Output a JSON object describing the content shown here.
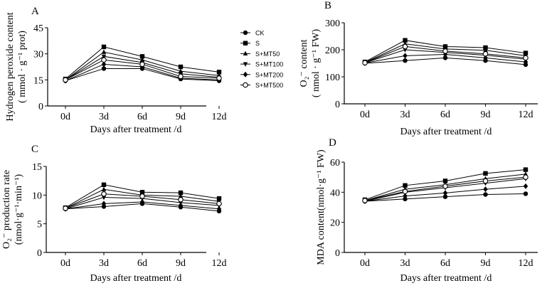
{
  "colors": {
    "ink": "#000000",
    "background": "#ffffff"
  },
  "legend": {
    "entries": [
      {
        "label": "CK",
        "marker": "circle"
      },
      {
        "label": "S",
        "marker": "square"
      },
      {
        "label": "S+MT50",
        "marker": "triangle-up"
      },
      {
        "label": "S+MT100",
        "marker": "triangle-down"
      },
      {
        "label": "S+MT200",
        "marker": "diamond"
      },
      {
        "label": "S+MT500",
        "marker": "circle-open"
      }
    ]
  },
  "chart_data": [
    {
      "type": "line",
      "panel_label": "A",
      "ylabel_lines": [
        "Hydrogen peroxide content",
        "( mmol · g⁻¹ prot)"
      ],
      "xlabel": "Days after treatment /d",
      "categories": [
        "0d",
        "3d",
        "6d",
        "9d",
        "12d"
      ],
      "ylim": [
        0,
        45
      ],
      "yticks": [
        0,
        15,
        30,
        45
      ],
      "ytick_labels": [
        "0",
        "15",
        "30",
        "45"
      ],
      "series": [
        {
          "name": "CK",
          "values": [
            14.5,
            21.5,
            21.5,
            15.5,
            14.5
          ]
        },
        {
          "name": "S",
          "values": [
            15.5,
            34.0,
            28.5,
            22.5,
            19.5
          ]
        },
        {
          "name": "S+MT50",
          "values": [
            15.0,
            31.0,
            26.5,
            20.0,
            17.5
          ]
        },
        {
          "name": "S+MT100",
          "values": [
            15.0,
            28.5,
            25.0,
            18.5,
            16.5
          ]
        },
        {
          "name": "S+MT200",
          "values": [
            14.5,
            24.0,
            22.5,
            16.0,
            15.0
          ]
        },
        {
          "name": "S+MT500",
          "values": [
            15.0,
            26.5,
            24.0,
            17.0,
            16.0
          ]
        }
      ]
    },
    {
      "type": "line",
      "panel_label": "B",
      "ylabel_lines": [
        "O₂⁻ content",
        "( nmol · g⁻¹ FW)"
      ],
      "xlabel": "Days after treatment /d",
      "categories": [
        "0d",
        "3d",
        "6d",
        "9d",
        "12d"
      ],
      "ylim": [
        0,
        300
      ],
      "yticks": [
        0,
        100,
        200,
        300
      ],
      "ytick_labels": [
        "0",
        "100",
        "200",
        "300"
      ],
      "series": [
        {
          "name": "CK",
          "values": [
            150,
            160,
            170,
            160,
            145
          ]
        },
        {
          "name": "S",
          "values": [
            155,
            235,
            212,
            208,
            188
          ]
        },
        {
          "name": "S+MT50",
          "values": [
            153,
            222,
            203,
            198,
            178
          ]
        },
        {
          "name": "S+MT100",
          "values": [
            152,
            200,
            190,
            180,
            165
          ]
        },
        {
          "name": "S+MT200",
          "values": [
            151,
            178,
            183,
            170,
            155
          ]
        },
        {
          "name": "S+MT500",
          "values": [
            152,
            212,
            195,
            185,
            170
          ]
        }
      ]
    },
    {
      "type": "line",
      "panel_label": "C",
      "ylabel_lines": [
        "O₂⁻ production rate",
        "(nmol·g⁻¹·min⁻¹)"
      ],
      "xlabel": "Days after treatment /d",
      "categories": [
        "0d",
        "3d",
        "6d",
        "9d",
        "12d"
      ],
      "ylim": [
        0,
        15
      ],
      "yticks": [
        0,
        5,
        10,
        15
      ],
      "ytick_labels": [
        "0",
        "5",
        "10",
        "15"
      ],
      "series": [
        {
          "name": "CK",
          "values": [
            7.6,
            8.0,
            8.5,
            7.9,
            7.2
          ]
        },
        {
          "name": "S",
          "values": [
            7.8,
            11.8,
            10.5,
            10.4,
            9.4
          ]
        },
        {
          "name": "S+MT50",
          "values": [
            7.7,
            11.0,
            10.0,
            9.8,
            8.9
          ]
        },
        {
          "name": "S+MT100",
          "values": [
            7.6,
            9.6,
            9.4,
            8.7,
            8.2
          ]
        },
        {
          "name": "S+MT200",
          "values": [
            7.6,
            8.5,
            8.8,
            8.2,
            7.6
          ]
        },
        {
          "name": "S+MT500",
          "values": [
            7.7,
            10.2,
            9.8,
            9.2,
            8.5
          ]
        }
      ]
    },
    {
      "type": "line",
      "panel_label": "D",
      "ylabel_lines": [
        "MDA content(nmol·g⁻¹ FW)"
      ],
      "xlabel": "Days after treatment /d",
      "categories": [
        "0d",
        "3d",
        "6d",
        "9d",
        "12d"
      ],
      "ylim": [
        0,
        60
      ],
      "yticks": [
        0,
        20,
        40,
        60
      ],
      "ytick_labels": [
        "0",
        "20",
        "40",
        "60"
      ],
      "series": [
        {
          "name": "CK",
          "values": [
            34,
            35.5,
            37,
            38.5,
            39
          ]
        },
        {
          "name": "S",
          "values": [
            35,
            44.5,
            47.5,
            52.5,
            55
          ]
        },
        {
          "name": "S+MT50",
          "values": [
            34.5,
            42,
            45,
            49,
            52
          ]
        },
        {
          "name": "S+MT100",
          "values": [
            34,
            40,
            43,
            46,
            49
          ]
        },
        {
          "name": "S+MT200",
          "values": [
            34,
            37.5,
            39.5,
            42,
            44
          ]
        },
        {
          "name": "S+MT500",
          "values": [
            34.5,
            40.5,
            44,
            47.5,
            50
          ]
        }
      ]
    }
  ]
}
